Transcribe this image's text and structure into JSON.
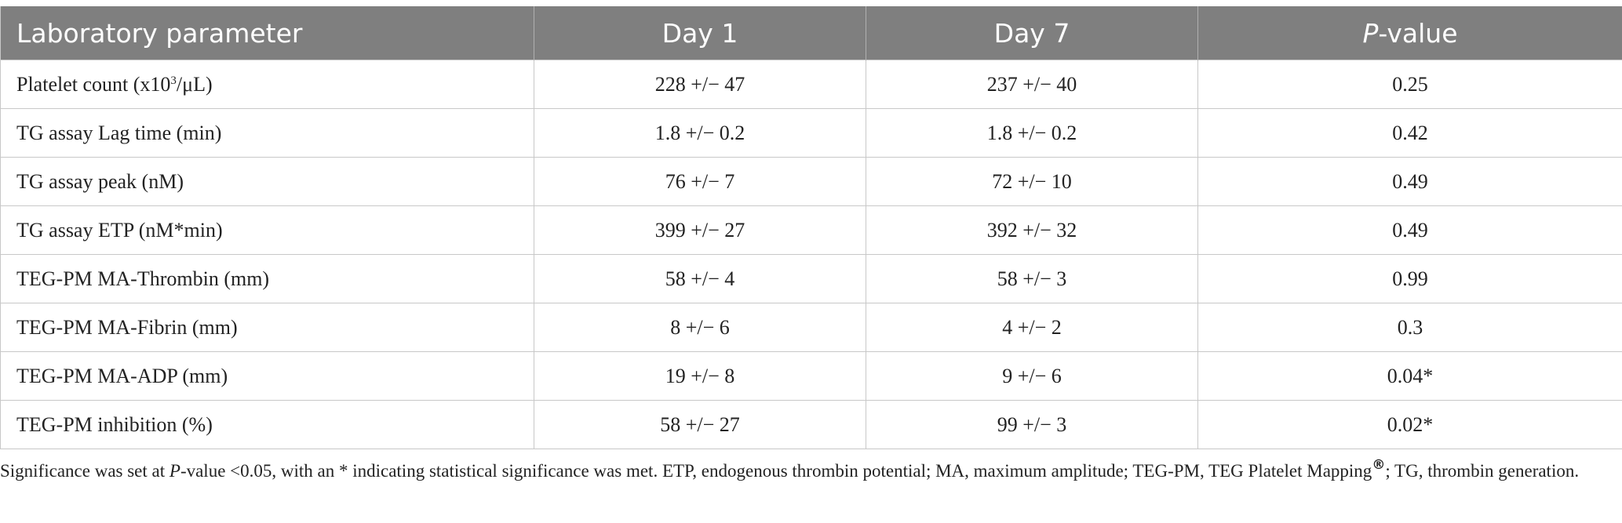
{
  "table": {
    "headers": {
      "col1": "Laboratory parameter",
      "col2": "Day 1",
      "col3": "Day 7",
      "col4_italic": "P",
      "col4_rest": "-value"
    },
    "rows": [
      {
        "param_pre": "Platelet count (x10",
        "param_sup": "3",
        "param_post": "/μL)",
        "day1": "228 +/− 47",
        "day7": "237 +/− 40",
        "pvalue": "0.25"
      },
      {
        "param": "TG assay Lag time (min)",
        "day1": "1.8 +/− 0.2",
        "day7": "1.8 +/− 0.2",
        "pvalue": "0.42"
      },
      {
        "param": "TG assay peak (nM)",
        "day1": "76 +/− 7",
        "day7": "72 +/− 10",
        "pvalue": "0.49"
      },
      {
        "param": "TG assay ETP (nM*min)",
        "day1": "399 +/− 27",
        "day7": "392 +/− 32",
        "pvalue": "0.49"
      },
      {
        "param": "TEG-PM MA-Thrombin (mm)",
        "day1": "58 +/− 4",
        "day7": "58 +/− 3",
        "pvalue": "0.99"
      },
      {
        "param": "TEG-PM MA-Fibrin (mm)",
        "day1": "8 +/− 6",
        "day7": "4 +/− 2",
        "pvalue": "0.3"
      },
      {
        "param": "TEG-PM MA-ADP (mm)",
        "day1": "19 +/− 8",
        "day7": "9 +/− 6",
        "pvalue": "0.04*"
      },
      {
        "param": "TEG-PM inhibition (%)",
        "day1": "58 +/− 27",
        "day7": "99 +/− 3",
        "pvalue": "0.02*"
      }
    ]
  },
  "footnote": {
    "part1": "Significance was set at ",
    "part2_italic": "P",
    "part3": "-value <0.05, with an * indicating statistical significance was met. ETP, endogenous thrombin potential; MA, maximum amplitude; TEG-PM, TEG Platelet Mapping",
    "reg_mark": "®",
    "part4": "; TG, thrombin generation."
  }
}
